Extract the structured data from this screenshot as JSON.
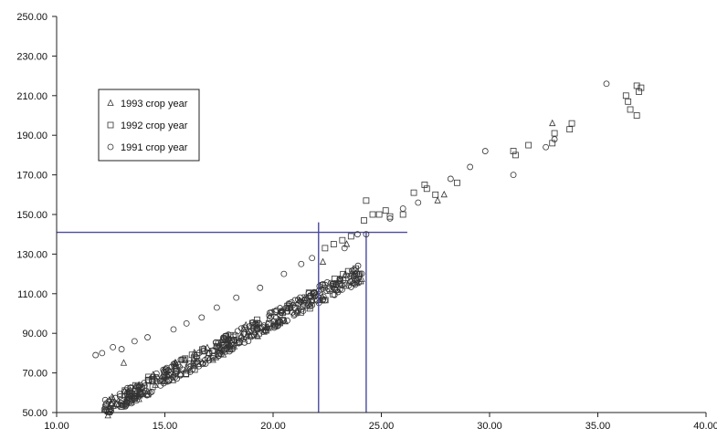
{
  "chart_data": {
    "type": "scatter",
    "title": "",
    "xlabel": "",
    "ylabel": "",
    "xlim": [
      10,
      40
    ],
    "ylim": [
      50,
      250
    ],
    "x_ticks": [
      "10.00",
      "15.00",
      "20.00",
      "25.00",
      "30.00",
      "35.00",
      "40.00"
    ],
    "y_ticks": [
      "50.00",
      "70.00",
      "90.00",
      "110.00",
      "130.00",
      "150.00",
      "170.00",
      "190.00",
      "210.00",
      "230.00",
      "250.00"
    ],
    "grid": false,
    "legend_position": "upper-left",
    "series": [
      {
        "name": "1993 crop year",
        "marker": "triangle",
        "points": [
          [
            13.1,
            75
          ],
          [
            27.6,
            157
          ],
          [
            27.9,
            160
          ],
          [
            32.9,
            196
          ],
          [
            22.3,
            126
          ],
          [
            23.4,
            135
          ]
        ]
      },
      {
        "name": "1992 crop year",
        "marker": "square",
        "points": [
          [
            22.4,
            133
          ],
          [
            22.8,
            135
          ],
          [
            23.2,
            137
          ],
          [
            23.6,
            139
          ],
          [
            24.2,
            147
          ],
          [
            24.3,
            157
          ],
          [
            24.6,
            150
          ],
          [
            24.9,
            150
          ],
          [
            25.2,
            152
          ],
          [
            25.4,
            149
          ],
          [
            26.0,
            150
          ],
          [
            26.5,
            161
          ],
          [
            27.0,
            165
          ],
          [
            27.1,
            163
          ],
          [
            27.5,
            160
          ],
          [
            28.5,
            166
          ],
          [
            31.1,
            182
          ],
          [
            31.2,
            180
          ],
          [
            31.8,
            185
          ],
          [
            32.9,
            186
          ],
          [
            33.0,
            191
          ],
          [
            33.7,
            193
          ],
          [
            33.8,
            196
          ],
          [
            36.3,
            210
          ],
          [
            36.4,
            207
          ],
          [
            36.5,
            203
          ],
          [
            36.8,
            215
          ],
          [
            36.9,
            212
          ],
          [
            37.0,
            214
          ],
          [
            36.8,
            200
          ]
        ]
      },
      {
        "name": "1991 crop year",
        "marker": "circle",
        "points": [
          [
            11.8,
            79
          ],
          [
            12.1,
            80
          ],
          [
            12.6,
            83
          ],
          [
            13.0,
            82
          ],
          [
            13.6,
            86
          ],
          [
            14.2,
            88
          ],
          [
            15.4,
            92
          ],
          [
            16.0,
            95
          ],
          [
            16.7,
            98
          ],
          [
            17.4,
            103
          ],
          [
            18.3,
            108
          ],
          [
            19.4,
            113
          ],
          [
            20.5,
            120
          ],
          [
            21.3,
            125
          ],
          [
            21.8,
            128
          ],
          [
            23.3,
            133
          ],
          [
            23.9,
            140
          ],
          [
            24.3,
            140
          ],
          [
            25.4,
            148
          ],
          [
            26.0,
            153
          ],
          [
            26.7,
            156
          ],
          [
            28.2,
            168
          ],
          [
            29.1,
            174
          ],
          [
            29.8,
            182
          ],
          [
            31.1,
            170
          ],
          [
            32.6,
            184
          ],
          [
            33.0,
            188
          ],
          [
            35.4,
            216
          ]
        ]
      }
    ],
    "reference_lines": [
      {
        "orientation": "horizontal",
        "y": 141,
        "x_range": [
          10,
          26.2
        ]
      },
      {
        "orientation": "vertical",
        "x": 22.1,
        "y_range": [
          50,
          146
        ]
      },
      {
        "orientation": "vertical",
        "x": 24.3,
        "y_range": [
          50,
          141
        ]
      }
    ],
    "colors": {
      "axis": "#222222",
      "marker": "#333333",
      "reference_line": "#4a4aa0"
    }
  }
}
